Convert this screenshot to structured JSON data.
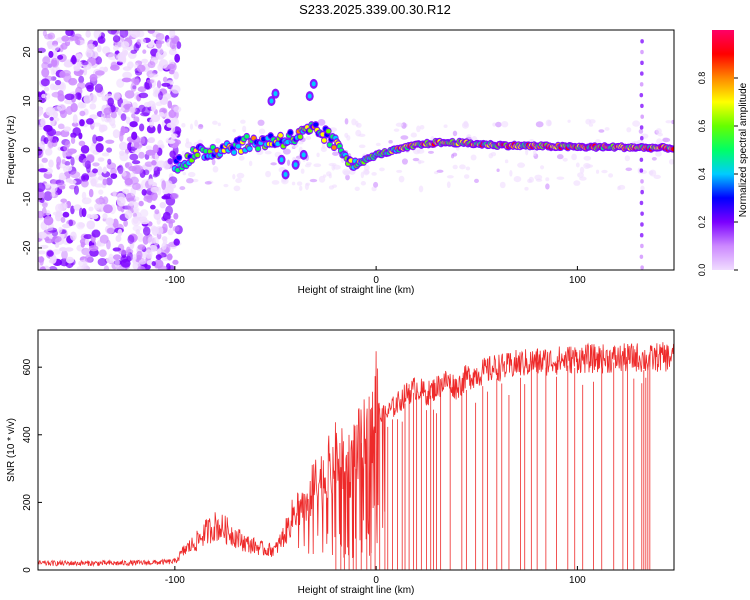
{
  "page_title": "S233.2025.339.00.30.R12",
  "colors": {
    "snr_line": "#ee2a2a",
    "frame": "#000000",
    "colormap": [
      "#f0dcff",
      "#cc88ff",
      "#7b00ff",
      "#0000ff",
      "#00ccff",
      "#00ff66",
      "#66ff00",
      "#ffff00",
      "#ff8800",
      "#ff0000",
      "#ff0066"
    ]
  },
  "chart_data": [
    {
      "type": "heatmap",
      "xlabel": "Height of straight line (km)",
      "ylabel": "Frequency (Hz)",
      "xlim": [
        -168,
        148
      ],
      "ylim": [
        -24.5,
        24.5
      ],
      "xticks": [
        -100,
        0,
        100
      ],
      "yticks": [
        -20,
        -10,
        0,
        10,
        20
      ],
      "colorbar": {
        "label": "Normalized spectral amplitude",
        "range": [
          0,
          1
        ],
        "ticks": [
          0.0,
          0.2,
          0.4,
          0.6,
          0.8
        ]
      },
      "grid": false,
      "ridge": {
        "description_points_x": [
          -100,
          -90,
          -80,
          -70,
          -60,
          -50,
          -40,
          -32,
          -25,
          -20,
          -15,
          -10,
          -5,
          0,
          10,
          20,
          30,
          40,
          60,
          80,
          100,
          120,
          130,
          148
        ],
        "description_points_y": [
          -3,
          -1,
          0,
          1,
          1.5,
          2,
          2.5,
          4,
          3,
          1,
          -1,
          -3,
          -2,
          -1,
          0,
          1,
          1.5,
          1.5,
          1,
          0.8,
          0.6,
          0.6,
          0.5,
          0.4
        ]
      }
    },
    {
      "type": "line",
      "xlabel": "Height of straight line (km)",
      "ylabel": "SNR (10 * v/v)",
      "xlim": [
        -168,
        148
      ],
      "ylim": [
        0,
        710
      ],
      "xticks": [
        -100,
        0,
        100
      ],
      "yticks": [
        0,
        200,
        400,
        600
      ],
      "grid": false,
      "series": [
        {
          "x": [
            -168,
            -150,
            -130,
            -110,
            -100,
            -95,
            -90,
            -85,
            -80,
            -75,
            -70,
            -65,
            -60,
            -55,
            -50,
            -45,
            -40,
            -35,
            -30,
            -25,
            -20,
            -15,
            -10,
            -5,
            -2,
            0,
            2,
            5,
            10,
            15,
            20,
            25,
            30,
            35,
            40,
            45,
            50,
            55,
            60,
            65,
            70,
            80,
            90,
            100,
            110,
            120,
            130,
            135,
            140,
            148
          ],
          "y": [
            20,
            20,
            20,
            22,
            25,
            60,
            80,
            110,
            130,
            120,
            100,
            80,
            70,
            60,
            60,
            110,
            180,
            200,
            250,
            280,
            330,
            300,
            350,
            380,
            420,
            630,
            450,
            460,
            490,
            520,
            540,
            520,
            540,
            560,
            540,
            570,
            580,
            590,
            600,
            600,
            610,
            615,
            620,
            625,
            625,
            625,
            630,
            620,
            630,
            630
          ]
        }
      ]
    }
  ]
}
